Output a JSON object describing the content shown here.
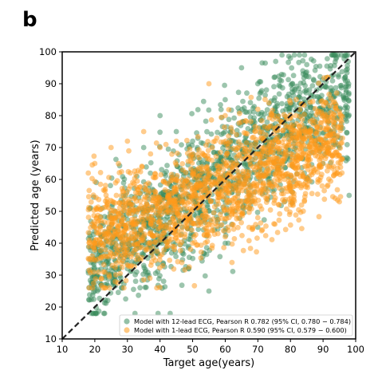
{
  "panel_label": "b",
  "chart_data": {
    "type": "scatter",
    "title": "",
    "xlabel": "Target age(years)",
    "ylabel": "Predicted age (years)",
    "xlim": [
      10,
      100
    ],
    "ylim": [
      10,
      100
    ],
    "xticks": [
      10,
      20,
      30,
      40,
      50,
      60,
      70,
      80,
      90,
      100
    ],
    "yticks": [
      10,
      20,
      30,
      40,
      50,
      60,
      70,
      80,
      90,
      100
    ],
    "grid": false,
    "legend_position": "bottom-right",
    "reference_line": {
      "style": "dashed",
      "color": "#222222",
      "points": [
        [
          10,
          10
        ],
        [
          100,
          100
        ]
      ]
    },
    "series": [
      {
        "name": "Model with 12-lead ECG, Pearson R 0.782 (95% CI, 0.780 − 0.784)",
        "color": "#3a8c5c",
        "x_range": [
          18,
          98
        ],
        "points": [
          [
            20,
            35
          ],
          [
            20,
            25
          ],
          [
            22,
            40
          ],
          [
            25,
            30
          ],
          [
            30,
            32
          ],
          [
            35,
            70
          ],
          [
            40,
            80
          ],
          [
            45,
            75
          ],
          [
            50,
            72
          ],
          [
            55,
            25
          ],
          [
            60,
            85
          ],
          [
            65,
            95
          ],
          [
            70,
            90
          ],
          [
            75,
            92
          ],
          [
            80,
            98
          ],
          [
            85,
            96
          ],
          [
            88,
            88
          ],
          [
            90,
            82
          ],
          [
            92,
            75
          ],
          [
            95,
            70
          ],
          [
            98,
            55
          ],
          [
            60,
            40
          ],
          [
            70,
            45
          ],
          [
            80,
            58
          ],
          [
            85,
            60
          ],
          [
            90,
            65
          ]
        ]
      },
      {
        "name": "Model with 1-lead ECG, Pearson R 0.590 (95% CI, 0.579 − 0.600)",
        "color": "#ff9a1a",
        "x_range": [
          18,
          96
        ],
        "points": [
          [
            18,
            62
          ],
          [
            20,
            65
          ],
          [
            25,
            70
          ],
          [
            30,
            72
          ],
          [
            35,
            75
          ],
          [
            40,
            70
          ],
          [
            45,
            72
          ],
          [
            50,
            68
          ],
          [
            55,
            90
          ],
          [
            60,
            80
          ],
          [
            65,
            78
          ],
          [
            70,
            82
          ],
          [
            75,
            80
          ],
          [
            80,
            84
          ],
          [
            85,
            75
          ],
          [
            90,
            70
          ],
          [
            95,
            53
          ],
          [
            20,
            40
          ],
          [
            30,
            38
          ],
          [
            40,
            36
          ],
          [
            50,
            40
          ],
          [
            60,
            42
          ],
          [
            70,
            48
          ],
          [
            80,
            52
          ]
        ]
      }
    ]
  }
}
